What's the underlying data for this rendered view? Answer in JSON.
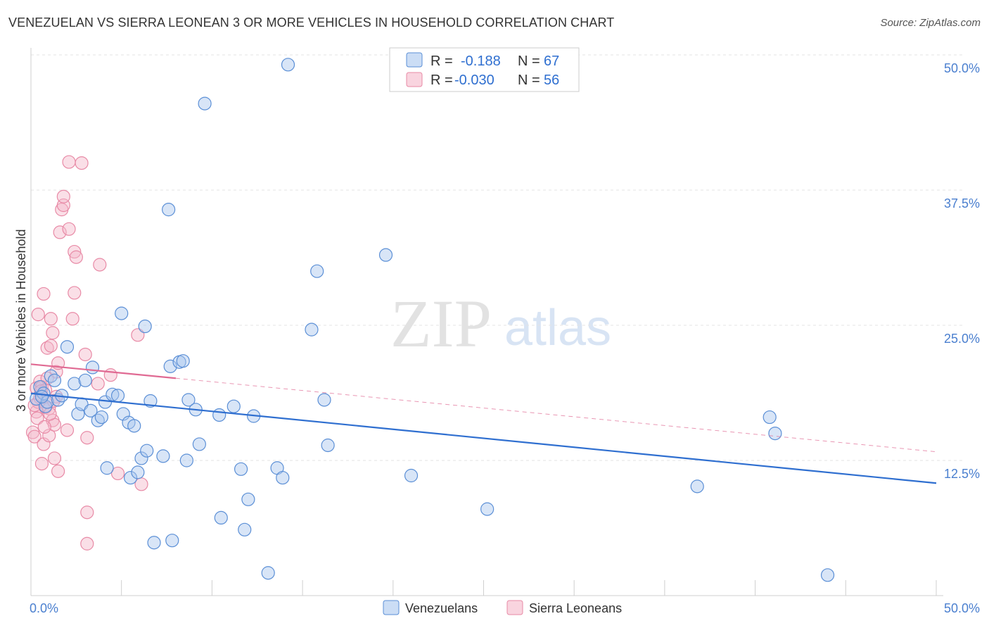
{
  "title": "VENEZUELAN VS SIERRA LEONEAN 3 OR MORE VEHICLES IN HOUSEHOLD CORRELATION CHART",
  "source": "Source: ZipAtlas.com",
  "watermark": {
    "zip": "ZIP",
    "atlas": "atlas"
  },
  "colors": {
    "venezuelan_fill": "#a9c6ee",
    "venezuelan_stroke": "#5b8fd6",
    "venezuelan_line": "#2f6fd0",
    "sierra_fill": "#f5b7c9",
    "sierra_stroke": "#e88aa6",
    "sierra_line": "#e06a93",
    "grid": "#e3e3e3",
    "tick_label": "#4a7fcf"
  },
  "legend": {
    "rows": [
      {
        "r_label": "R =",
        "r_value": "-0.188",
        "n_label": "N =",
        "n_value": "67"
      },
      {
        "r_label": "R =",
        "r_value": "-0.030",
        "n_label": "N =",
        "n_value": "56"
      }
    ]
  },
  "chart_data": {
    "type": "scatter",
    "title": "VENEZUELAN VS SIERRA LEONEAN 3 OR MORE VEHICLES IN HOUSEHOLD CORRELATION CHART",
    "xlabel": "",
    "ylabel": "3 or more Vehicles in Household",
    "xlim": [
      0,
      50
    ],
    "ylim": [
      0,
      50
    ],
    "x_tick_labels": [
      {
        "value": 0,
        "label": "0.0%"
      },
      {
        "value": 50,
        "label": "50.0%"
      }
    ],
    "y_tick_labels": [
      {
        "value": 12.5,
        "label": "12.5%"
      },
      {
        "value": 25,
        "label": "25.0%"
      },
      {
        "value": 37.5,
        "label": "37.5%"
      },
      {
        "value": 50,
        "label": "50.0%"
      }
    ],
    "x_minor_ticks": [
      0,
      5,
      10,
      15,
      20,
      25,
      30,
      35,
      40,
      45,
      50
    ],
    "grid": true,
    "legend_position": "top-center",
    "series": [
      {
        "name": "Venezuelans",
        "r": -0.188,
        "n": 67,
        "trend": {
          "x": [
            0,
            50
          ],
          "y": [
            18.7,
            10.4
          ],
          "style": "solid"
        },
        "points": [
          [
            0.3,
            18.2
          ],
          [
            0.5,
            19.3
          ],
          [
            0.7,
            18.7
          ],
          [
            0.8,
            17.5
          ],
          [
            0.9,
            17.9
          ],
          [
            1.1,
            20.3
          ],
          [
            1.3,
            19.9
          ],
          [
            1.5,
            18.1
          ],
          [
            1.7,
            18.5
          ],
          [
            2.0,
            23.0
          ],
          [
            2.4,
            19.6
          ],
          [
            2.6,
            16.8
          ],
          [
            2.8,
            17.7
          ],
          [
            3.0,
            19.9
          ],
          [
            3.3,
            17.1
          ],
          [
            3.4,
            21.1
          ],
          [
            3.7,
            16.2
          ],
          [
            3.9,
            16.5
          ],
          [
            4.1,
            17.9
          ],
          [
            4.2,
            11.8
          ],
          [
            4.5,
            18.6
          ],
          [
            4.8,
            18.5
          ],
          [
            5.0,
            26.1
          ],
          [
            5.1,
            16.8
          ],
          [
            5.4,
            16.0
          ],
          [
            5.5,
            10.9
          ],
          [
            5.7,
            15.7
          ],
          [
            5.9,
            11.4
          ],
          [
            6.1,
            12.7
          ],
          [
            6.3,
            24.9
          ],
          [
            6.4,
            13.4
          ],
          [
            6.6,
            18.0
          ],
          [
            6.8,
            4.9
          ],
          [
            7.3,
            12.9
          ],
          [
            7.6,
            35.7
          ],
          [
            7.7,
            21.2
          ],
          [
            7.8,
            5.1
          ],
          [
            8.2,
            21.6
          ],
          [
            8.4,
            21.7
          ],
          [
            8.6,
            12.5
          ],
          [
            8.7,
            18.1
          ],
          [
            9.1,
            17.2
          ],
          [
            9.3,
            14.0
          ],
          [
            9.6,
            45.5
          ],
          [
            10.4,
            16.7
          ],
          [
            10.5,
            7.2
          ],
          [
            11.2,
            17.5
          ],
          [
            11.6,
            11.7
          ],
          [
            11.8,
            6.1
          ],
          [
            12.0,
            8.9
          ],
          [
            12.3,
            16.6
          ],
          [
            13.1,
            2.1
          ],
          [
            13.6,
            11.8
          ],
          [
            13.9,
            10.9
          ],
          [
            14.2,
            49.1
          ],
          [
            15.5,
            24.6
          ],
          [
            15.8,
            30.0
          ],
          [
            16.2,
            18.1
          ],
          [
            16.4,
            13.9
          ],
          [
            19.6,
            31.5
          ],
          [
            21.0,
            11.1
          ],
          [
            25.2,
            8.0
          ],
          [
            36.8,
            10.1
          ],
          [
            40.8,
            16.5
          ],
          [
            41.1,
            15.0
          ],
          [
            44.0,
            1.9
          ],
          [
            0.6,
            18.4
          ]
        ]
      },
      {
        "name": "Sierra Leoneans",
        "r": -0.03,
        "n": 56,
        "trend": {
          "x": [
            0,
            8
          ],
          "y": [
            21.4,
            20.1
          ],
          "extension_x": [
            8,
            50
          ],
          "extension_y": [
            20.1,
            13.3
          ],
          "style": "solid-then-dashed"
        },
        "points": [
          [
            0.1,
            15.1
          ],
          [
            0.2,
            14.7
          ],
          [
            0.3,
            17.0
          ],
          [
            0.3,
            19.2
          ],
          [
            0.4,
            17.9
          ],
          [
            0.4,
            26.0
          ],
          [
            0.5,
            18.3
          ],
          [
            0.5,
            19.8
          ],
          [
            0.6,
            19.3
          ],
          [
            0.6,
            12.2
          ],
          [
            0.7,
            27.9
          ],
          [
            0.7,
            14.0
          ],
          [
            0.8,
            17.4
          ],
          [
            0.8,
            19.0
          ],
          [
            0.9,
            22.9
          ],
          [
            1.0,
            17.3
          ],
          [
            1.0,
            14.8
          ],
          [
            1.1,
            23.1
          ],
          [
            1.1,
            25.6
          ],
          [
            1.2,
            24.3
          ],
          [
            1.2,
            16.2
          ],
          [
            1.3,
            15.8
          ],
          [
            1.3,
            12.7
          ],
          [
            1.4,
            20.7
          ],
          [
            1.4,
            18.4
          ],
          [
            1.5,
            11.5
          ],
          [
            1.5,
            21.5
          ],
          [
            1.6,
            33.6
          ],
          [
            1.7,
            35.7
          ],
          [
            1.8,
            36.1
          ],
          [
            1.8,
            36.9
          ],
          [
            2.0,
            15.3
          ],
          [
            2.1,
            40.1
          ],
          [
            2.1,
            33.9
          ],
          [
            2.3,
            25.6
          ],
          [
            2.4,
            28.0
          ],
          [
            2.4,
            31.8
          ],
          [
            2.5,
            31.3
          ],
          [
            2.8,
            40.0
          ],
          [
            3.0,
            22.3
          ],
          [
            3.1,
            14.6
          ],
          [
            3.1,
            7.7
          ],
          [
            3.1,
            4.8
          ],
          [
            3.7,
            19.6
          ],
          [
            3.8,
            30.6
          ],
          [
            4.4,
            20.4
          ],
          [
            4.8,
            11.3
          ],
          [
            5.9,
            24.1
          ],
          [
            6.1,
            10.3
          ],
          [
            0.9,
            20.1
          ],
          [
            0.2,
            17.6
          ],
          [
            0.35,
            16.4
          ],
          [
            1.05,
            16.8
          ],
          [
            0.55,
            18.9
          ],
          [
            1.25,
            18.0
          ],
          [
            0.75,
            15.6
          ]
        ]
      }
    ]
  },
  "bottom_legend": {
    "items": [
      {
        "label": "Venezuelans"
      },
      {
        "label": "Sierra Leoneans"
      }
    ]
  }
}
